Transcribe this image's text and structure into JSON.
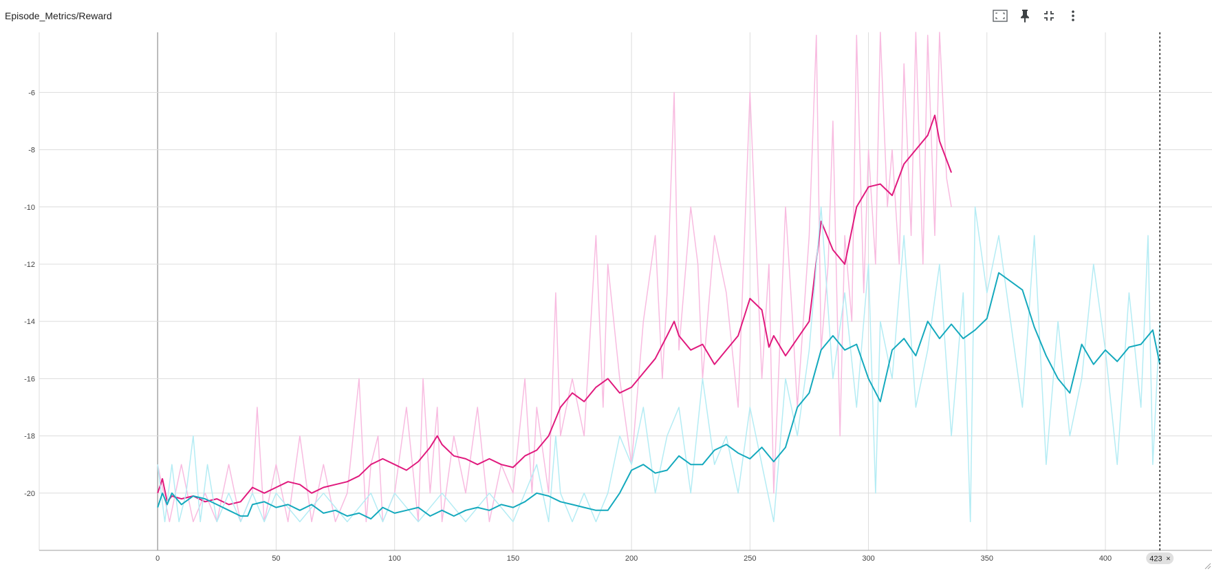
{
  "card": {
    "title": "Episode_Metrics/Reward",
    "toolbar": [
      {
        "name": "fit-domain-icon"
      },
      {
        "name": "pin-icon"
      },
      {
        "name": "collapse-icon"
      },
      {
        "name": "more-vert-icon"
      }
    ]
  },
  "cursor": {
    "step": 423,
    "label": "423",
    "close_glyph": "×"
  },
  "colors": {
    "grid": "#dcdcdc",
    "axis": "#9e9e9e",
    "cursor": "#212121",
    "badge": "#e0e0e0"
  },
  "chart_data": {
    "type": "line",
    "title": "Episode_Metrics/Reward",
    "xlabel": "",
    "ylabel": "",
    "xlim": [
      -50,
      445
    ],
    "ylim": [
      -22,
      -3.9
    ],
    "xticks": [
      0,
      50,
      100,
      150,
      200,
      250,
      300,
      350,
      400
    ],
    "yticks": [
      -6,
      -8,
      -10,
      -12,
      -14,
      -16,
      -18,
      -20
    ],
    "grid": true,
    "legend": "none",
    "series": [
      {
        "role": "raw",
        "color": "#f8bbe0",
        "x": [
          0,
          5,
          10,
          15,
          20,
          25,
          30,
          35,
          40,
          42,
          45,
          50,
          55,
          60,
          65,
          70,
          75,
          80,
          85,
          88,
          90,
          93,
          95,
          100,
          105,
          110,
          112,
          115,
          118,
          120,
          125,
          130,
          135,
          140,
          145,
          150,
          155,
          158,
          160,
          165,
          168,
          170,
          175,
          180,
          185,
          188,
          190,
          195,
          200,
          205,
          210,
          213,
          215,
          218,
          220,
          225,
          228,
          230,
          235,
          240,
          245,
          250,
          255,
          258,
          260,
          265,
          268,
          270,
          275,
          278,
          280,
          283,
          285,
          288,
          290,
          293,
          295,
          298,
          300,
          303,
          305,
          308,
          310,
          313,
          315,
          318,
          320,
          323,
          325,
          328,
          330,
          333,
          335
        ],
        "y": [
          -19,
          -21,
          -19,
          -21,
          -20,
          -21,
          -19,
          -21,
          -20,
          -17,
          -21,
          -19,
          -21,
          -18,
          -21,
          -19,
          -21,
          -20,
          -16,
          -21,
          -19,
          -18,
          -21,
          -20,
          -17,
          -21,
          -16,
          -20,
          -17,
          -21,
          -18,
          -20,
          -17,
          -21,
          -19,
          -20,
          -16,
          -20,
          -17,
          -20,
          -13,
          -18,
          -16,
          -18,
          -11,
          -17,
          -12,
          -16,
          -19,
          -14,
          -11,
          -16,
          -13,
          -6,
          -15,
          -10,
          -12,
          -16,
          -11,
          -13,
          -17,
          -6,
          -16,
          -12,
          -20,
          -10,
          -14,
          -17,
          -11,
          -4,
          -15,
          -12,
          -7,
          -18,
          -11,
          -14,
          -4,
          -13,
          -8,
          -12,
          -3.9,
          -10,
          -8,
          -12,
          -5,
          -11,
          -3.9,
          -12,
          -4,
          -11,
          -3.9,
          -9,
          -10
        ]
      },
      {
        "role": "smoothed",
        "color": "#e0197d",
        "x": [
          0,
          2,
          4,
          6,
          10,
          15,
          20,
          25,
          30,
          35,
          40,
          45,
          50,
          55,
          60,
          65,
          70,
          75,
          80,
          85,
          90,
          95,
          100,
          105,
          110,
          115,
          118,
          120,
          125,
          130,
          135,
          140,
          145,
          150,
          155,
          160,
          165,
          170,
          175,
          180,
          185,
          190,
          195,
          200,
          205,
          210,
          215,
          218,
          220,
          225,
          230,
          235,
          240,
          245,
          250,
          255,
          258,
          260,
          265,
          270,
          275,
          280,
          285,
          290,
          295,
          300,
          305,
          310,
          315,
          320,
          325,
          328,
          330,
          335
        ],
        "y": [
          -20,
          -19.5,
          -20.3,
          -20.1,
          -20.2,
          -20.1,
          -20.3,
          -20.2,
          -20.4,
          -20.3,
          -19.8,
          -20,
          -19.8,
          -19.6,
          -19.7,
          -20,
          -19.8,
          -19.7,
          -19.6,
          -19.4,
          -19,
          -18.8,
          -19,
          -19.2,
          -18.9,
          -18.4,
          -18.0,
          -18.3,
          -18.7,
          -18.8,
          -19.0,
          -18.8,
          -19.0,
          -19.1,
          -18.7,
          -18.5,
          -18.0,
          -17.0,
          -16.5,
          -16.8,
          -16.3,
          -16.0,
          -16.5,
          -16.3,
          -15.8,
          -15.3,
          -14.5,
          -14.0,
          -14.5,
          -15.0,
          -14.8,
          -15.5,
          -15.0,
          -14.5,
          -13.2,
          -13.6,
          -14.9,
          -14.5,
          -15.2,
          -14.6,
          -14.0,
          -10.5,
          -11.5,
          -12.0,
          -10.0,
          -9.3,
          -9.2,
          -9.6,
          -8.5,
          -8.0,
          -7.5,
          -6.8,
          -7.7,
          -8.8
        ]
      },
      {
        "role": "raw",
        "color": "#b4ecf4",
        "x": [
          0,
          3,
          6,
          9,
          12,
          15,
          18,
          21,
          25,
          30,
          35,
          40,
          45,
          50,
          60,
          70,
          80,
          90,
          95,
          100,
          110,
          120,
          130,
          140,
          150,
          155,
          160,
          165,
          168,
          170,
          175,
          180,
          185,
          190,
          195,
          200,
          205,
          210,
          215,
          220,
          225,
          230,
          235,
          240,
          245,
          250,
          255,
          260,
          265,
          270,
          275,
          280,
          285,
          290,
          295,
          300,
          303,
          305,
          310,
          315,
          320,
          325,
          330,
          335,
          340,
          343,
          345,
          350,
          355,
          360,
          365,
          370,
          375,
          380,
          385,
          390,
          395,
          400,
          405,
          410,
          415,
          418,
          420,
          423
        ],
        "y": [
          -19,
          -21,
          -19,
          -21,
          -20,
          -18,
          -21,
          -19,
          -21,
          -20,
          -21,
          -20,
          -21,
          -20,
          -21,
          -20,
          -21,
          -20,
          -21,
          -20,
          -21,
          -20,
          -21,
          -20,
          -21,
          -20,
          -19,
          -21,
          -18,
          -20,
          -21,
          -20,
          -21,
          -20,
          -18,
          -19,
          -17,
          -20,
          -18,
          -17,
          -20,
          -16,
          -19,
          -18,
          -20,
          -17,
          -19,
          -21,
          -16,
          -18,
          -15,
          -10,
          -16,
          -13,
          -17,
          -12,
          -20,
          -14,
          -16,
          -11,
          -17,
          -15,
          -12,
          -18,
          -13,
          -21,
          -10,
          -13,
          -11,
          -14,
          -17,
          -11,
          -19,
          -14,
          -18,
          -16,
          -12,
          -15,
          -19,
          -13,
          -17,
          -11,
          -19,
          -14
        ]
      },
      {
        "role": "smoothed",
        "color": "#14a9bd",
        "x": [
          0,
          2,
          4,
          6,
          10,
          15,
          20,
          25,
          30,
          35,
          38,
          40,
          45,
          50,
          55,
          60,
          65,
          70,
          75,
          80,
          85,
          90,
          95,
          100,
          105,
          110,
          115,
          120,
          125,
          130,
          135,
          140,
          145,
          150,
          155,
          160,
          165,
          170,
          175,
          180,
          185,
          190,
          195,
          200,
          205,
          210,
          215,
          220,
          225,
          230,
          235,
          240,
          245,
          250,
          255,
          260,
          265,
          270,
          275,
          280,
          285,
          290,
          295,
          300,
          305,
          310,
          315,
          320,
          325,
          330,
          335,
          340,
          345,
          350,
          355,
          360,
          365,
          370,
          375,
          380,
          385,
          390,
          395,
          400,
          405,
          410,
          415,
          420,
          423
        ],
        "y": [
          -20.5,
          -20.0,
          -20.4,
          -20.0,
          -20.4,
          -20.1,
          -20.2,
          -20.4,
          -20.6,
          -20.8,
          -20.8,
          -20.4,
          -20.3,
          -20.5,
          -20.4,
          -20.6,
          -20.4,
          -20.7,
          -20.6,
          -20.8,
          -20.7,
          -20.9,
          -20.5,
          -20.7,
          -20.6,
          -20.5,
          -20.8,
          -20.6,
          -20.8,
          -20.6,
          -20.5,
          -20.6,
          -20.4,
          -20.5,
          -20.3,
          -20.0,
          -20.1,
          -20.3,
          -20.4,
          -20.5,
          -20.6,
          -20.6,
          -20.0,
          -19.2,
          -19.0,
          -19.3,
          -19.2,
          -18.7,
          -19.0,
          -19.0,
          -18.5,
          -18.3,
          -18.6,
          -18.8,
          -18.4,
          -18.9,
          -18.4,
          -17.0,
          -16.5,
          -15.0,
          -14.5,
          -15.0,
          -14.8,
          -16.0,
          -16.8,
          -15.0,
          -14.6,
          -15.2,
          -14.0,
          -14.6,
          -14.1,
          -14.6,
          -14.3,
          -13.9,
          -12.3,
          -12.6,
          -12.9,
          -14.2,
          -15.2,
          -16.0,
          -16.5,
          -14.8,
          -15.5,
          -15.0,
          -15.4,
          -14.9,
          -14.8,
          -14.3,
          -15.5
        ]
      }
    ]
  }
}
